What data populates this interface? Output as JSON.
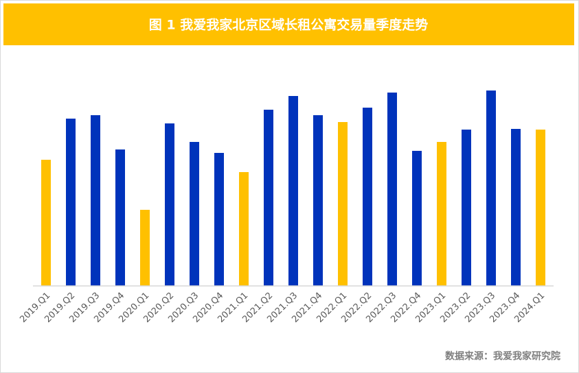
{
  "chart_data": {
    "type": "bar",
    "title": "图 1  我爱我家北京区域长租公寓交易量季度走势",
    "categories": [
      "2019.Q1",
      "2019.Q2",
      "2019.Q3",
      "2019.Q4",
      "2020.Q1",
      "2020.Q2",
      "2020.Q3",
      "2020.Q4",
      "2021.Q1",
      "2021.Q2",
      "2021.Q3",
      "2021.Q4",
      "2022.Q1",
      "2022.Q2",
      "2022.Q3",
      "2022.Q4",
      "2023.Q1",
      "2023.Q2",
      "2023.Q3",
      "2023.Q4",
      "2024.Q1"
    ],
    "values": [
      184,
      244,
      249,
      199,
      111,
      237,
      210,
      194,
      166,
      257,
      277,
      249,
      239,
      260,
      282,
      197,
      210,
      228,
      285,
      229,
      228
    ],
    "colors": [
      "#FFC000",
      "#0033BB",
      "#0033BB",
      "#0033BB",
      "#FFC000",
      "#0033BB",
      "#0033BB",
      "#0033BB",
      "#FFC000",
      "#0033BB",
      "#0033BB",
      "#0033BB",
      "#FFC000",
      "#0033BB",
      "#0033BB",
      "#0033BB",
      "#FFC000",
      "#0033BB",
      "#0033BB",
      "#0033BB",
      "#FFC000"
    ],
    "ylim": [
      0,
      300
    ],
    "source": "数据来源：我爱我家研究院"
  }
}
